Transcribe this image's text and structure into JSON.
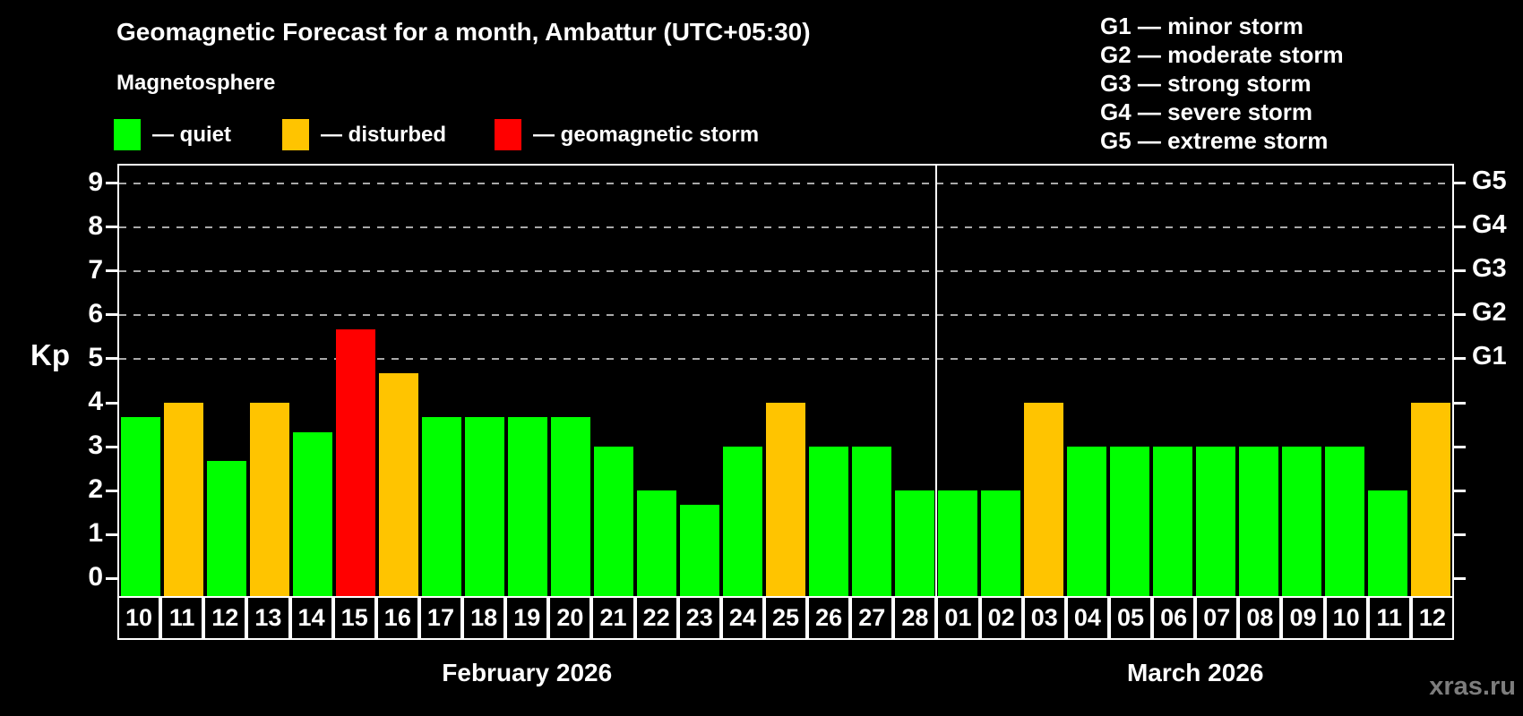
{
  "title": "Geomagnetic Forecast for a month, Ambattur (UTC+05:30)",
  "subtitle": "Magnetosphere",
  "watermark": "xras.ru",
  "legend": {
    "items": [
      {
        "key": "quiet",
        "label": "— quiet",
        "color": "#00ff00"
      },
      {
        "key": "disturbed",
        "label": "— disturbed",
        "color": "#ffc400"
      },
      {
        "key": "storm",
        "label": "— geomagnetic storm",
        "color": "#ff0000"
      }
    ]
  },
  "g_scale_legend": [
    "G1 — minor storm",
    "G2 — moderate storm",
    "G3 — strong storm",
    "G4 — severe storm",
    "G5 — extreme storm"
  ],
  "chart_data": {
    "type": "bar",
    "title": "Geomagnetic Forecast for a month, Ambattur (UTC+05:30)",
    "ylabel": "Kp",
    "ylim": [
      -0.4,
      9.4
    ],
    "yticks": [
      0,
      1,
      2,
      3,
      4,
      5,
      6,
      7,
      8,
      9
    ],
    "gridlines_at_kp": [
      5,
      6,
      7,
      8,
      9
    ],
    "grid": "dashed horizontal at storm levels only",
    "legend_position": "top",
    "right_axis": [
      {
        "kp": 5,
        "label": "G1"
      },
      {
        "kp": 6,
        "label": "G2"
      },
      {
        "kp": 7,
        "label": "G3"
      },
      {
        "kp": 8,
        "label": "G4"
      },
      {
        "kp": 9,
        "label": "G5"
      }
    ],
    "status_colors": {
      "quiet": "#00ff00",
      "disturbed": "#ffc400",
      "storm": "#ff0000"
    },
    "months": [
      {
        "label": "February 2026",
        "days": [
          {
            "day": "10",
            "kp": 3.67,
            "status": "quiet"
          },
          {
            "day": "11",
            "kp": 4.0,
            "status": "disturbed"
          },
          {
            "day": "12",
            "kp": 2.67,
            "status": "quiet"
          },
          {
            "day": "13",
            "kp": 4.0,
            "status": "disturbed"
          },
          {
            "day": "14",
            "kp": 3.33,
            "status": "quiet"
          },
          {
            "day": "15",
            "kp": 5.67,
            "status": "storm"
          },
          {
            "day": "16",
            "kp": 4.67,
            "status": "disturbed"
          },
          {
            "day": "17",
            "kp": 3.67,
            "status": "quiet"
          },
          {
            "day": "18",
            "kp": 3.67,
            "status": "quiet"
          },
          {
            "day": "19",
            "kp": 3.67,
            "status": "quiet"
          },
          {
            "day": "20",
            "kp": 3.67,
            "status": "quiet"
          },
          {
            "day": "21",
            "kp": 3.0,
            "status": "quiet"
          },
          {
            "day": "22",
            "kp": 2.0,
            "status": "quiet"
          },
          {
            "day": "23",
            "kp": 1.67,
            "status": "quiet"
          },
          {
            "day": "24",
            "kp": 3.0,
            "status": "quiet"
          },
          {
            "day": "25",
            "kp": 4.0,
            "status": "disturbed"
          },
          {
            "day": "26",
            "kp": 3.0,
            "status": "quiet"
          },
          {
            "day": "27",
            "kp": 3.0,
            "status": "quiet"
          },
          {
            "day": "28",
            "kp": 2.0,
            "status": "quiet"
          }
        ]
      },
      {
        "label": "March 2026",
        "days": [
          {
            "day": "01",
            "kp": 2.0,
            "status": "quiet"
          },
          {
            "day": "02",
            "kp": 2.0,
            "status": "quiet"
          },
          {
            "day": "03",
            "kp": 4.0,
            "status": "disturbed"
          },
          {
            "day": "04",
            "kp": 3.0,
            "status": "quiet"
          },
          {
            "day": "05",
            "kp": 3.0,
            "status": "quiet"
          },
          {
            "day": "06",
            "kp": 3.0,
            "status": "quiet"
          },
          {
            "day": "07",
            "kp": 3.0,
            "status": "quiet"
          },
          {
            "day": "08",
            "kp": 3.0,
            "status": "quiet"
          },
          {
            "day": "09",
            "kp": 3.0,
            "status": "quiet"
          },
          {
            "day": "10",
            "kp": 3.0,
            "status": "quiet"
          },
          {
            "day": "11",
            "kp": 2.0,
            "status": "quiet"
          },
          {
            "day": "12",
            "kp": 4.0,
            "status": "disturbed"
          }
        ]
      }
    ]
  }
}
